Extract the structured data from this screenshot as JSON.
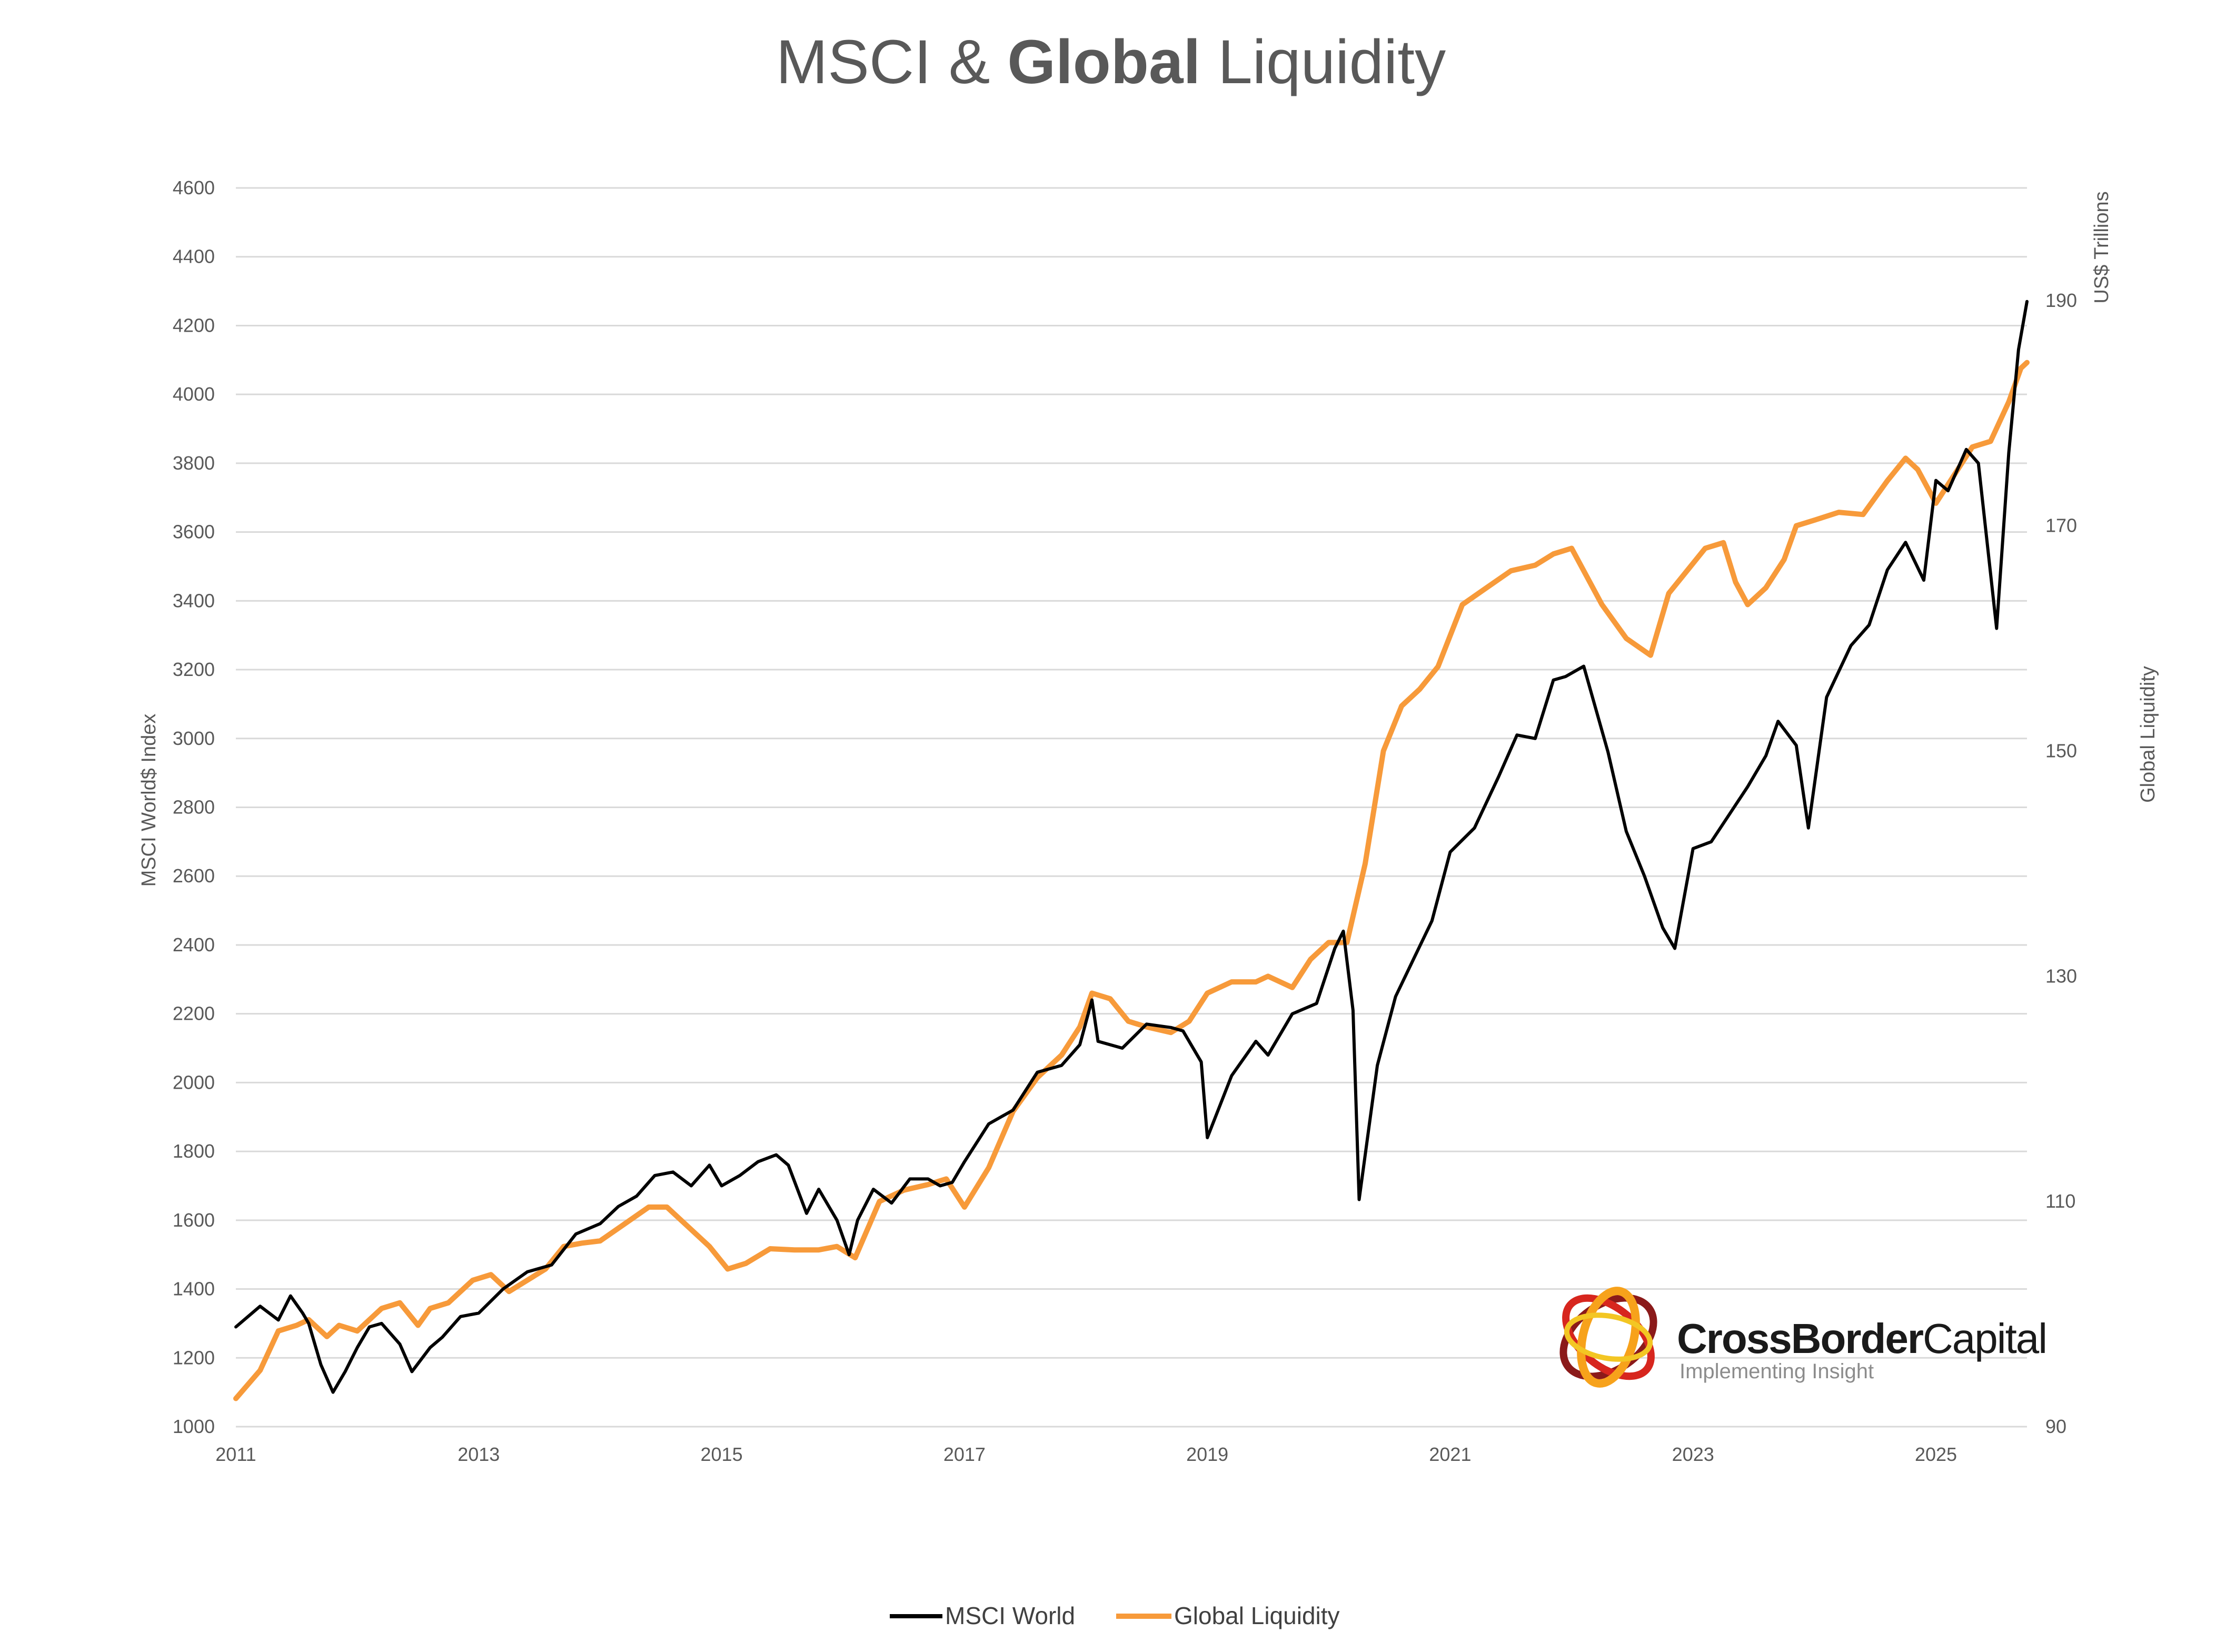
{
  "colors": {
    "msci": "#000000",
    "liquidity": "#f79a3a",
    "grid": "#d9d9d9",
    "text": "#595959"
  },
  "chart_data": {
    "type": "line",
    "title": "MSCI & Global Liquidity",
    "title_plain_part": "MSCI & ",
    "title_bold_part": "Global",
    "title_end_part": " Liquidity",
    "ylabel": "MSCI World$ Index",
    "y2label_top": "US$ Trillions",
    "y2label": "Global Liquidity",
    "ylim": [
      1000,
      4600
    ],
    "y2lim": [
      90,
      200
    ],
    "yticks": [
      "1000",
      "1200",
      "1400",
      "1600",
      "1800",
      "2000",
      "2200",
      "2400",
      "2600",
      "2800",
      "3000",
      "3200",
      "3400",
      "3600",
      "3800",
      "4000",
      "4200",
      "4400",
      "4600"
    ],
    "y2ticks": [
      "90",
      "110",
      "130",
      "150",
      "170",
      "190"
    ],
    "xlim": [
      2011.0,
      2025.75
    ],
    "xticks": [
      "2011",
      "2013",
      "2015",
      "2017",
      "2019",
      "2021",
      "2023",
      "2025"
    ],
    "grid": true,
    "legend_position": "bottom-center",
    "series": [
      {
        "name": "MSCI World",
        "axis": "left",
        "x": [
          2011.0,
          2011.1,
          2011.2,
          2011.35,
          2011.45,
          2011.55,
          2011.6,
          2011.7,
          2011.8,
          2011.9,
          2012.0,
          2012.1,
          2012.2,
          2012.35,
          2012.45,
          2012.6,
          2012.7,
          2012.85,
          2013.0,
          2013.2,
          2013.4,
          2013.6,
          2013.8,
          2014.0,
          2014.15,
          2014.3,
          2014.45,
          2014.6,
          2014.75,
          2014.9,
          2015.0,
          2015.15,
          2015.3,
          2015.45,
          2015.55,
          2015.7,
          2015.8,
          2015.95,
          2016.05,
          2016.12,
          2016.25,
          2016.4,
          2016.55,
          2016.7,
          2016.8,
          2016.9,
          2017.0,
          2017.2,
          2017.4,
          2017.6,
          2017.8,
          2017.95,
          2018.05,
          2018.1,
          2018.3,
          2018.5,
          2018.7,
          2018.8,
          2018.95,
          2019.0,
          2019.2,
          2019.4,
          2019.5,
          2019.7,
          2019.9,
          2020.05,
          2020.12,
          2020.2,
          2020.25,
          2020.4,
          2020.55,
          2020.7,
          2020.85,
          2021.0,
          2021.2,
          2021.4,
          2021.55,
          2021.7,
          2021.85,
          2021.95,
          2022.1,
          2022.3,
          2022.45,
          2022.6,
          2022.75,
          2022.85,
          2023.0,
          2023.15,
          2023.3,
          2023.45,
          2023.6,
          2023.7,
          2023.85,
          2023.95,
          2024.1,
          2024.3,
          2024.45,
          2024.6,
          2024.75,
          2024.9,
          2025.0,
          2025.1,
          2025.25,
          2025.35,
          2025.5,
          2025.6,
          2025.68,
          2025.75
        ],
        "values": [
          1290,
          1320,
          1350,
          1310,
          1380,
          1330,
          1300,
          1180,
          1100,
          1160,
          1230,
          1290,
          1300,
          1240,
          1160,
          1230,
          1260,
          1320,
          1330,
          1400,
          1450,
          1470,
          1560,
          1590,
          1640,
          1670,
          1730,
          1740,
          1700,
          1760,
          1700,
          1730,
          1770,
          1790,
          1760,
          1620,
          1690,
          1600,
          1500,
          1600,
          1690,
          1650,
          1720,
          1720,
          1700,
          1710,
          1770,
          1880,
          1920,
          2030,
          2050,
          2110,
          2240,
          2120,
          2100,
          2170,
          2160,
          2150,
          2060,
          1840,
          2020,
          2120,
          2080,
          2200,
          2230,
          2390,
          2440,
          2210,
          1660,
          2050,
          2250,
          2360,
          2470,
          2670,
          2740,
          2890,
          3010,
          3000,
          3170,
          3180,
          3210,
          2960,
          2730,
          2600,
          2450,
          2390,
          2680,
          2700,
          2780,
          2860,
          2950,
          3050,
          2980,
          2740,
          3120,
          3270,
          3330,
          3490,
          3570,
          3460,
          3750,
          3720,
          3840,
          3800,
          3320,
          3830,
          4130,
          4270
        ]
      },
      {
        "name": "Global Liquidity",
        "axis": "right",
        "x": [
          2011.0,
          2011.2,
          2011.35,
          2011.5,
          2011.6,
          2011.75,
          2011.85,
          2012.0,
          2012.2,
          2012.35,
          2012.5,
          2012.6,
          2012.75,
          2012.95,
          2013.1,
          2013.25,
          2013.4,
          2013.55,
          2013.7,
          2013.85,
          2014.0,
          2014.2,
          2014.4,
          2014.55,
          2014.7,
          2014.9,
          2015.05,
          2015.2,
          2015.4,
          2015.6,
          2015.8,
          2015.95,
          2016.1,
          2016.3,
          2016.5,
          2016.7,
          2016.85,
          2017.0,
          2017.2,
          2017.4,
          2017.6,
          2017.8,
          2017.95,
          2018.05,
          2018.2,
          2018.35,
          2018.5,
          2018.7,
          2018.85,
          2019.0,
          2019.2,
          2019.4,
          2019.5,
          2019.7,
          2019.85,
          2020.0,
          2020.15,
          2020.3,
          2020.45,
          2020.6,
          2020.75,
          2020.9,
          2021.1,
          2021.3,
          2021.5,
          2021.7,
          2021.85,
          2022.0,
          2022.1,
          2022.25,
          2022.45,
          2022.65,
          2022.8,
          2022.95,
          2023.1,
          2023.25,
          2023.35,
          2023.45,
          2023.6,
          2023.75,
          2023.85,
          2024.0,
          2024.2,
          2024.4,
          2024.6,
          2024.75,
          2024.85,
          2025.0,
          2025.15,
          2025.3,
          2025.45,
          2025.6,
          2025.7,
          2025.75
        ],
        "values": [
          92.5,
          95,
          98.5,
          99,
          99.5,
          98,
          99,
          98.5,
          100.5,
          101,
          99,
          100.5,
          101,
          103,
          103.5,
          102,
          103,
          104,
          106,
          106.3,
          106.5,
          108,
          109.5,
          109.5,
          108,
          106,
          104,
          104.5,
          105.8,
          105.7,
          105.7,
          106,
          105,
          110,
          111,
          111.5,
          112,
          109.5,
          113,
          118,
          121,
          123,
          125.5,
          128.5,
          128,
          126,
          125.5,
          125,
          126,
          128.5,
          129.5,
          129.5,
          130,
          129,
          131.5,
          133,
          133,
          140,
          150,
          154,
          155.5,
          157.5,
          163,
          164.5,
          166,
          166.5,
          167.5,
          168,
          166,
          163,
          160,
          158.5,
          164,
          166,
          168,
          168.5,
          165,
          163,
          164.5,
          167,
          170,
          170.5,
          171.2,
          171,
          174,
          176,
          175,
          172,
          174.5,
          177,
          177.5,
          181,
          184,
          184.5
        ]
      }
    ]
  },
  "legend": {
    "items": [
      {
        "label": "MSCI World"
      },
      {
        "label": "Global Liquidity"
      }
    ]
  },
  "logo": {
    "name_bold": "CrossBorder",
    "name_light": "Capital",
    "tagline": "Implementing Insight"
  }
}
